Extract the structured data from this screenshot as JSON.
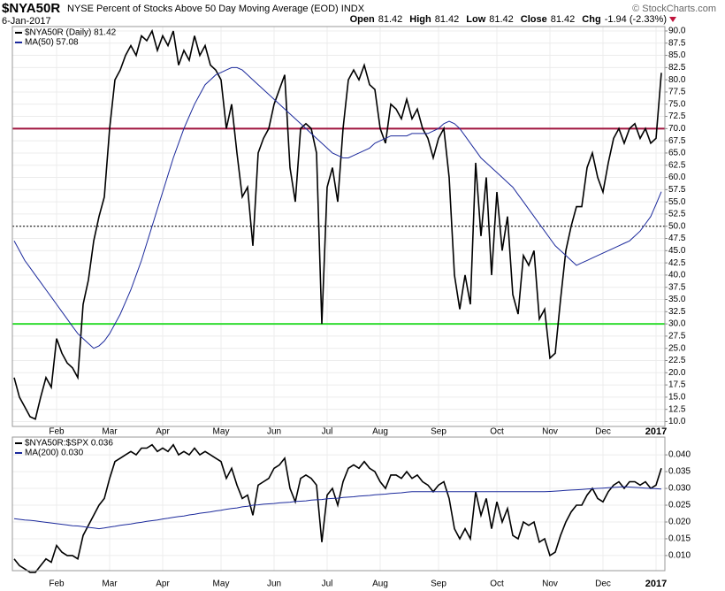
{
  "chart_data": [
    {
      "type": "line",
      "symbol": "$NYA50R",
      "title": "NYSE Percent of Stocks Above 50 Day Moving Average (EOD) INDX",
      "date": "6-Jan-2017",
      "copyright": "© StockCharts.com",
      "quote": [
        {
          "label": "Open",
          "value": "81.42"
        },
        {
          "label": "High",
          "value": "81.42"
        },
        {
          "label": "Low",
          "value": "81.42"
        },
        {
          "label": "Close",
          "value": "81.42"
        },
        {
          "label": "Chg",
          "value": "-1.94 (-2.33%)"
        }
      ],
      "categories": [
        null,
        null,
        null,
        null,
        null,
        null,
        null,
        null,
        "Feb",
        null,
        null,
        null,
        null,
        null,
        null,
        null,
        null,
        null,
        "Mar",
        null,
        null,
        null,
        null,
        null,
        null,
        null,
        null,
        null,
        "Apr",
        null,
        null,
        null,
        null,
        null,
        null,
        null,
        null,
        null,
        null,
        "May",
        null,
        null,
        null,
        null,
        null,
        null,
        null,
        null,
        null,
        "Jun",
        null,
        null,
        null,
        null,
        null,
        null,
        null,
        null,
        null,
        "Jul",
        null,
        null,
        null,
        null,
        null,
        null,
        null,
        null,
        null,
        "Aug",
        null,
        null,
        null,
        null,
        null,
        null,
        null,
        null,
        null,
        null,
        "Sep",
        null,
        null,
        null,
        null,
        null,
        null,
        null,
        null,
        null,
        null,
        "Oct",
        null,
        null,
        null,
        null,
        null,
        null,
        null,
        null,
        null,
        "Nov",
        null,
        null,
        null,
        null,
        null,
        null,
        null,
        null,
        null,
        "Dec",
        null,
        null,
        null,
        null,
        null,
        null,
        null,
        null,
        null,
        "2017",
        null
      ],
      "series": [
        {
          "name": "$NYA50R (Daily) 81.42",
          "color": "#000000",
          "values": [
            19,
            15,
            13,
            11,
            10.5,
            15,
            19,
            17,
            27,
            24,
            22,
            21,
            19,
            34,
            39,
            47,
            52,
            56,
            70,
            80,
            82,
            85,
            87,
            85,
            89,
            88,
            90,
            86,
            89,
            87,
            90,
            83,
            86,
            84,
            89,
            85,
            87,
            83,
            82,
            80,
            70,
            75,
            65,
            56,
            58,
            46,
            65,
            68,
            70,
            75,
            78,
            81,
            62,
            55,
            70,
            71,
            70,
            65,
            30,
            58,
            62,
            55,
            70,
            80,
            82,
            80,
            83,
            79,
            78,
            70,
            67,
            75,
            74,
            72,
            76,
            72,
            74,
            70,
            68,
            64,
            68,
            70,
            60,
            40,
            33,
            40,
            34,
            63,
            48,
            60,
            40,
            57,
            45,
            52,
            36,
            32,
            44,
            42,
            45,
            31,
            33,
            23,
            24,
            35,
            45,
            50,
            54,
            54,
            62,
            65,
            60,
            57,
            63,
            68,
            70,
            67,
            70,
            71,
            68,
            70,
            67,
            68,
            81.42
          ]
        },
        {
          "name": "MA(50) 57.08",
          "color": "#1c2a9c",
          "values": [
            47,
            45,
            43,
            41.5,
            40,
            38.5,
            37,
            35.5,
            34,
            32.5,
            31,
            29.5,
            28,
            27,
            26,
            25,
            25.5,
            26.5,
            28,
            30,
            32,
            34.5,
            37,
            40,
            43,
            46.5,
            50,
            53.5,
            57,
            60.5,
            64,
            67,
            70,
            72.5,
            75,
            77,
            79,
            80,
            81,
            81.5,
            82,
            82.5,
            82.5,
            82,
            81,
            80,
            79,
            78,
            77,
            76,
            75,
            74,
            73,
            72,
            71,
            70,
            69,
            68,
            67,
            66,
            65,
            64.5,
            64,
            64,
            64.5,
            65,
            65.5,
            66,
            67,
            67.5,
            68,
            68.5,
            68.5,
            68.5,
            68.5,
            69,
            69,
            69,
            69,
            69.5,
            70,
            71,
            71.5,
            71,
            70,
            68.5,
            67,
            65.5,
            64,
            63,
            62,
            61,
            60,
            59,
            58,
            56.5,
            55,
            53.5,
            52,
            50.5,
            49,
            47.5,
            46,
            45,
            44,
            43,
            42,
            42.5,
            43,
            43.5,
            44,
            44.5,
            45,
            45.5,
            46,
            46.5,
            47,
            48,
            49,
            50.5,
            52,
            54.5,
            57.08
          ]
        }
      ],
      "reference_lines": [
        {
          "value": 70,
          "color": "#a0153e",
          "style": "solid"
        },
        {
          "value": 30,
          "color": "#33dd33",
          "style": "solid"
        },
        {
          "value": 50,
          "color": "#000000",
          "style": "dotted"
        }
      ],
      "ylim": [
        9.0,
        90.9
      ],
      "yticks": [
        {
          "value": 10,
          "label": "10.0"
        },
        {
          "value": 12.5,
          "label": "12.5"
        },
        {
          "value": 15,
          "label": "15.0"
        },
        {
          "value": 17.5,
          "label": "17.5"
        },
        {
          "value": 20,
          "label": "20.0"
        },
        {
          "value": 22.5,
          "label": "22.5"
        },
        {
          "value": 25,
          "label": "25.0"
        },
        {
          "value": 27.5,
          "label": "27.5"
        },
        {
          "value": 30,
          "label": "30.0"
        },
        {
          "value": 32.5,
          "label": "32.5"
        },
        {
          "value": 35,
          "label": "35.0"
        },
        {
          "value": 37.5,
          "label": "37.5"
        },
        {
          "value": 40,
          "label": "40.0"
        },
        {
          "value": 42.5,
          "label": "42.5"
        },
        {
          "value": 45,
          "label": "45.0"
        },
        {
          "value": 47.5,
          "label": "47.5"
        },
        {
          "value": 50,
          "label": "50.0"
        },
        {
          "value": 52.5,
          "label": "52.5"
        },
        {
          "value": 55,
          "label": "55.0"
        },
        {
          "value": 57.5,
          "label": "57.5"
        },
        {
          "value": 60,
          "label": "60.0"
        },
        {
          "value": 62.5,
          "label": "62.5"
        },
        {
          "value": 65,
          "label": "65.0"
        },
        {
          "value": 67.5,
          "label": "67.5"
        },
        {
          "value": 70,
          "label": "70.0"
        },
        {
          "value": 72.5,
          "label": "72.5"
        },
        {
          "value": 75,
          "label": "75.0"
        },
        {
          "value": 77.5,
          "label": "77.5"
        },
        {
          "value": 80,
          "label": "80.0"
        },
        {
          "value": 82.5,
          "label": "82.5"
        },
        {
          "value": 85,
          "label": "85.0"
        },
        {
          "value": 87.5,
          "label": "87.5"
        },
        {
          "value": 90,
          "label": "90.0"
        }
      ],
      "grid": true
    },
    {
      "type": "line",
      "categories": [
        null,
        null,
        null,
        null,
        null,
        null,
        null,
        null,
        "Feb",
        null,
        null,
        null,
        null,
        null,
        null,
        null,
        null,
        null,
        "Mar",
        null,
        null,
        null,
        null,
        null,
        null,
        null,
        null,
        null,
        "Apr",
        null,
        null,
        null,
        null,
        null,
        null,
        null,
        null,
        null,
        null,
        "May",
        null,
        null,
        null,
        null,
        null,
        null,
        null,
        null,
        null,
        "Jun",
        null,
        null,
        null,
        null,
        null,
        null,
        null,
        null,
        null,
        "Jul",
        null,
        null,
        null,
        null,
        null,
        null,
        null,
        null,
        null,
        "Aug",
        null,
        null,
        null,
        null,
        null,
        null,
        null,
        null,
        null,
        null,
        "Sep",
        null,
        null,
        null,
        null,
        null,
        null,
        null,
        null,
        null,
        null,
        "Oct",
        null,
        null,
        null,
        null,
        null,
        null,
        null,
        null,
        null,
        "Nov",
        null,
        null,
        null,
        null,
        null,
        null,
        null,
        null,
        null,
        "Dec",
        null,
        null,
        null,
        null,
        null,
        null,
        null,
        null,
        null,
        "2017",
        null
      ],
      "series": [
        {
          "name": "$NYA50R:$SPX 0.036",
          "color": "#000000",
          "values": [
            0.009,
            0.007,
            0.006,
            0.005,
            0.005,
            0.007,
            0.009,
            0.008,
            0.013,
            0.011,
            0.01,
            0.01,
            0.009,
            0.016,
            0.019,
            0.022,
            0.025,
            0.027,
            0.033,
            0.038,
            0.039,
            0.04,
            0.041,
            0.04,
            0.042,
            0.042,
            0.043,
            0.041,
            0.042,
            0.041,
            0.043,
            0.04,
            0.041,
            0.04,
            0.042,
            0.04,
            0.041,
            0.04,
            0.039,
            0.038,
            0.033,
            0.036,
            0.031,
            0.027,
            0.028,
            0.022,
            0.031,
            0.032,
            0.033,
            0.036,
            0.037,
            0.039,
            0.03,
            0.026,
            0.033,
            0.034,
            0.033,
            0.031,
            0.014,
            0.028,
            0.03,
            0.025,
            0.032,
            0.036,
            0.037,
            0.036,
            0.038,
            0.036,
            0.035,
            0.032,
            0.03,
            0.034,
            0.034,
            0.033,
            0.035,
            0.033,
            0.034,
            0.032,
            0.031,
            0.029,
            0.031,
            0.032,
            0.027,
            0.018,
            0.015,
            0.018,
            0.015,
            0.029,
            0.022,
            0.027,
            0.018,
            0.026,
            0.02,
            0.024,
            0.016,
            0.015,
            0.02,
            0.019,
            0.02,
            0.014,
            0.015,
            0.01,
            0.011,
            0.016,
            0.02,
            0.023,
            0.025,
            0.025,
            0.028,
            0.03,
            0.027,
            0.026,
            0.029,
            0.031,
            0.032,
            0.03,
            0.032,
            0.032,
            0.031,
            0.032,
            0.03,
            0.031,
            0.036
          ]
        },
        {
          "name": "MA(200) 0.030",
          "color": "#1c2a9c",
          "values": [
            0.021,
            0.0208,
            0.0206,
            0.0205,
            0.0203,
            0.0201,
            0.0199,
            0.0197,
            0.0195,
            0.0193,
            0.0191,
            0.0189,
            0.0188,
            0.0186,
            0.0184,
            0.0182,
            0.018,
            0.0182,
            0.0185,
            0.0187,
            0.019,
            0.0192,
            0.0194,
            0.0197,
            0.0199,
            0.0202,
            0.0204,
            0.0206,
            0.0209,
            0.0211,
            0.0214,
            0.0216,
            0.0218,
            0.0221,
            0.0223,
            0.0226,
            0.0228,
            0.023,
            0.0233,
            0.0235,
            0.0238,
            0.024,
            0.0242,
            0.0245,
            0.0247,
            0.025,
            0.0251,
            0.0253,
            0.0254,
            0.0255,
            0.0257,
            0.0258,
            0.0259,
            0.0261,
            0.0262,
            0.0263,
            0.0265,
            0.0266,
            0.0267,
            0.0269,
            0.027,
            0.0271,
            0.0273,
            0.0274,
            0.0275,
            0.0277,
            0.0278,
            0.0279,
            0.0281,
            0.0282,
            0.0283,
            0.0285,
            0.0286,
            0.0287,
            0.0289,
            0.029,
            0.029,
            0.029,
            0.029,
            0.029,
            0.029,
            0.029,
            0.029,
            0.029,
            0.029,
            0.029,
            0.029,
            0.029,
            0.029,
            0.029,
            0.029,
            0.029,
            0.029,
            0.029,
            0.029,
            0.029,
            0.029,
            0.029,
            0.029,
            0.029,
            0.029,
            0.0291,
            0.0292,
            0.0293,
            0.0294,
            0.0295,
            0.0296,
            0.0297,
            0.0298,
            0.0299,
            0.03,
            0.0301,
            0.0302,
            0.0303,
            0.0304,
            0.0305,
            0.0304,
            0.0303,
            0.0302,
            0.0301,
            0.03,
            0.0299,
            0.0298
          ]
        }
      ],
      "ylim": [
        0.0055,
        0.0453
      ],
      "yticks": [
        {
          "value": 0.01,
          "label": "0.010"
        },
        {
          "value": 0.015,
          "label": "0.015"
        },
        {
          "value": 0.02,
          "label": "0.020"
        },
        {
          "value": 0.025,
          "label": "0.025"
        },
        {
          "value": 0.03,
          "label": "0.030"
        },
        {
          "value": 0.035,
          "label": "0.035"
        },
        {
          "value": 0.04,
          "label": "0.040"
        }
      ],
      "grid": true
    }
  ]
}
